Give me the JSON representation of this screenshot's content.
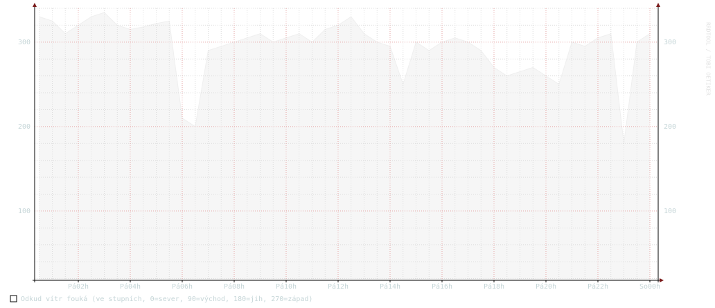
{
  "chart_data": {
    "type": "area",
    "legend_label": "Odkud vítr fouká (ve stupních, 0=sever, 90=východ, 180=jih, 270=západ)",
    "watermark": "RRDTOOL / TOBI OETIKER",
    "color": "#f6f6f6",
    "line_color": "#efefef",
    "xlim": [
      0.32,
      24.32
    ],
    "xticks": [
      {
        "value": 2,
        "label": "Pá02h"
      },
      {
        "value": 4,
        "label": "Pá04h"
      },
      {
        "value": 6,
        "label": "Pá06h"
      },
      {
        "value": 8,
        "label": "Pá08h"
      },
      {
        "value": 10,
        "label": "Pá10h"
      },
      {
        "value": 12,
        "label": "Pá12h"
      },
      {
        "value": 14,
        "label": "Pá14h"
      },
      {
        "value": 16,
        "label": "Pá16h"
      },
      {
        "value": 18,
        "label": "Pá18h"
      },
      {
        "value": 20,
        "label": "Pá20h"
      },
      {
        "value": 22,
        "label": "Pá22h"
      },
      {
        "value": 24,
        "label": "So00h"
      }
    ],
    "xminor": [
      0.5,
      1,
      1.5,
      2.5,
      3,
      3.5,
      4.5,
      5,
      5.5,
      6.5,
      7,
      7.5,
      8.5,
      9,
      9.5,
      10.5,
      11,
      11.5,
      12.5,
      13,
      13.5,
      14.5,
      15,
      15.5,
      16.5,
      17,
      17.5,
      18.5,
      19,
      19.5,
      20.5,
      21,
      21.5,
      22.5,
      23,
      23.5
    ],
    "ylim": [
      18,
      340
    ],
    "yticks": [
      100,
      200,
      300
    ],
    "yminor": [
      20,
      40,
      60,
      80,
      120,
      140,
      160,
      180,
      220,
      240,
      260,
      280,
      320,
      340
    ],
    "x": [
      0.5,
      1,
      1.5,
      2,
      2.5,
      3,
      3.5,
      4,
      4.5,
      5,
      5.5,
      6,
      6.5,
      7,
      7.5,
      8,
      8.5,
      9,
      9.5,
      10,
      10.5,
      11,
      11.5,
      12,
      12.5,
      13,
      13.5,
      14,
      14.5,
      15,
      15.5,
      16,
      16.5,
      17,
      17.5,
      18,
      18.5,
      19,
      19.5,
      20,
      20.5,
      21,
      21.5,
      22,
      22.5,
      23,
      23.5,
      24
    ],
    "values": [
      330,
      325,
      310,
      320,
      330,
      335,
      320,
      315,
      318,
      322,
      325,
      210,
      200,
      290,
      295,
      300,
      305,
      310,
      300,
      305,
      310,
      300,
      315,
      320,
      330,
      310,
      300,
      295,
      250,
      300,
      290,
      300,
      305,
      300,
      290,
      270,
      260,
      265,
      270,
      260,
      250,
      300,
      295,
      305,
      310,
      180,
      300,
      310
    ]
  }
}
